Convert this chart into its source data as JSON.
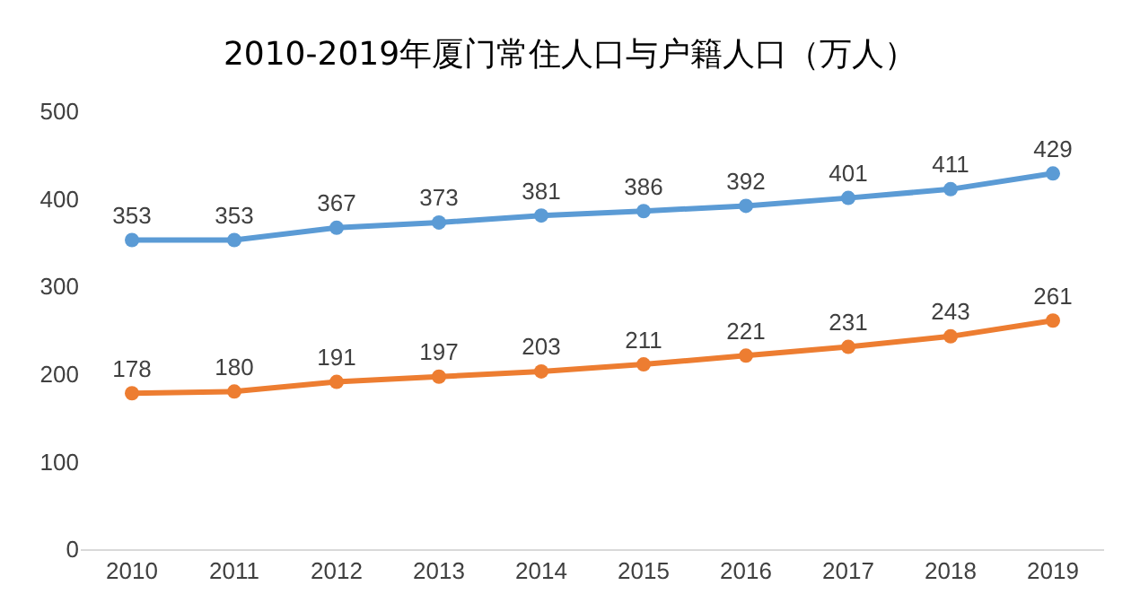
{
  "chart_data": {
    "type": "line",
    "title": "2010-2019年厦门常住人口与户籍人口（万人）",
    "categories": [
      "2010",
      "2011",
      "2012",
      "2013",
      "2014",
      "2015",
      "2016",
      "2017",
      "2018",
      "2019"
    ],
    "series": [
      {
        "color": "#5b9bd5",
        "values": [
          353,
          353,
          367,
          373,
          381,
          386,
          392,
          401,
          411,
          429
        ]
      },
      {
        "color": "#ed7d31",
        "values": [
          178,
          180,
          191,
          197,
          203,
          211,
          221,
          231,
          243,
          261
        ]
      }
    ],
    "ylim": [
      0,
      500
    ],
    "yticks": [
      0,
      100,
      200,
      300,
      400,
      500
    ],
    "grid": false,
    "marker": "circle",
    "line_style": "solid",
    "data_labels": true
  }
}
